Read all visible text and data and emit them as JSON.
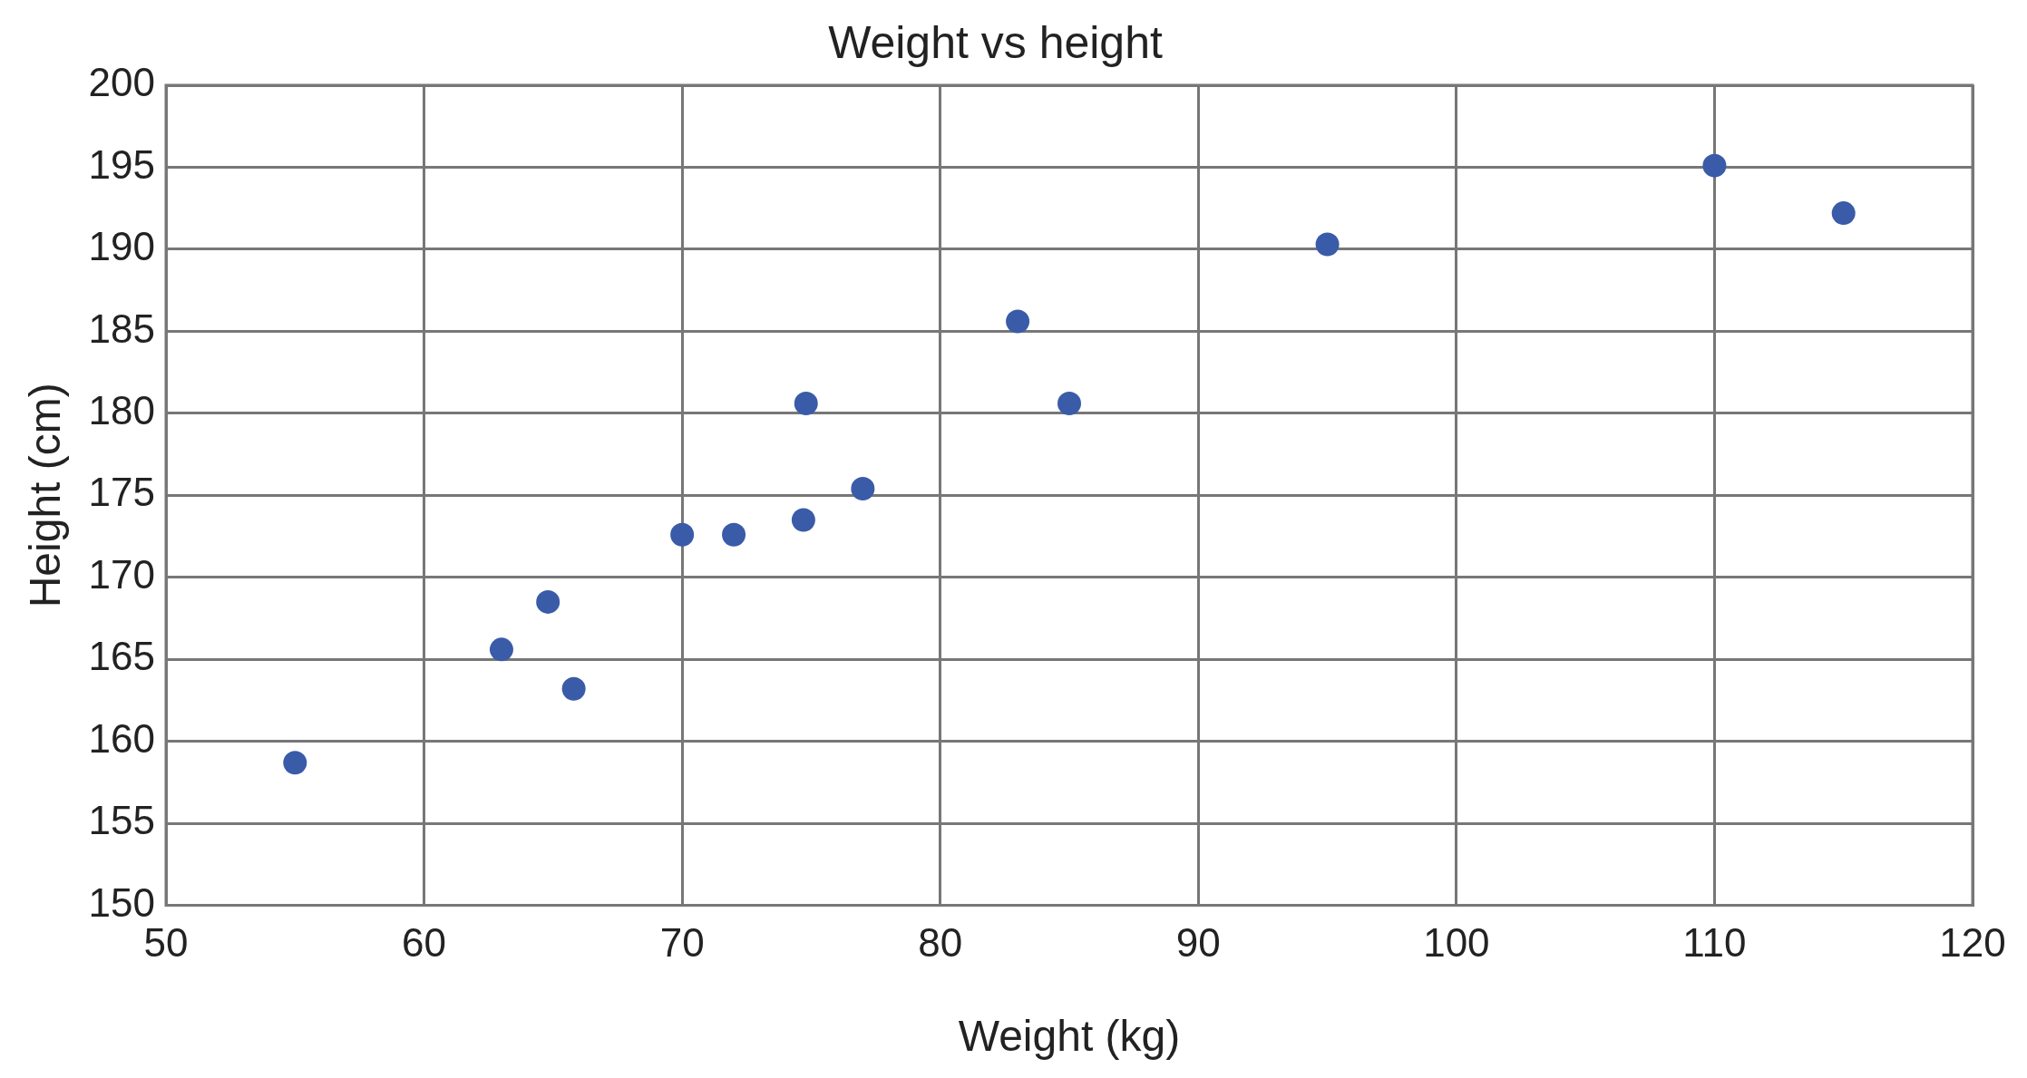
{
  "chart_data": {
    "type": "scatter",
    "title": "Weight vs height",
    "xlabel": "Weight (kg)",
    "ylabel": "Height (cm)",
    "x": [
      55,
      63,
      64.8,
      65.8,
      70,
      72,
      74.7,
      74.8,
      77,
      83,
      85,
      95,
      110,
      115
    ],
    "series": [
      {
        "color": "#3a5ba8",
        "values": [
          158.7,
          165.6,
          168.5,
          163.2,
          172.6,
          172.6,
          173.5,
          180.6,
          175.4,
          185.6,
          180.6,
          190.3,
          195.1,
          192.2
        ]
      }
    ],
    "xlim": [
      50,
      120
    ],
    "xticks": [
      50,
      60,
      70,
      80,
      90,
      100,
      110,
      120
    ],
    "ylim": [
      150,
      200
    ],
    "yticks": [
      150,
      155,
      160,
      165,
      170,
      175,
      180,
      185,
      190,
      195,
      200
    ],
    "grid": true,
    "legend": false,
    "marker": "circle"
  }
}
